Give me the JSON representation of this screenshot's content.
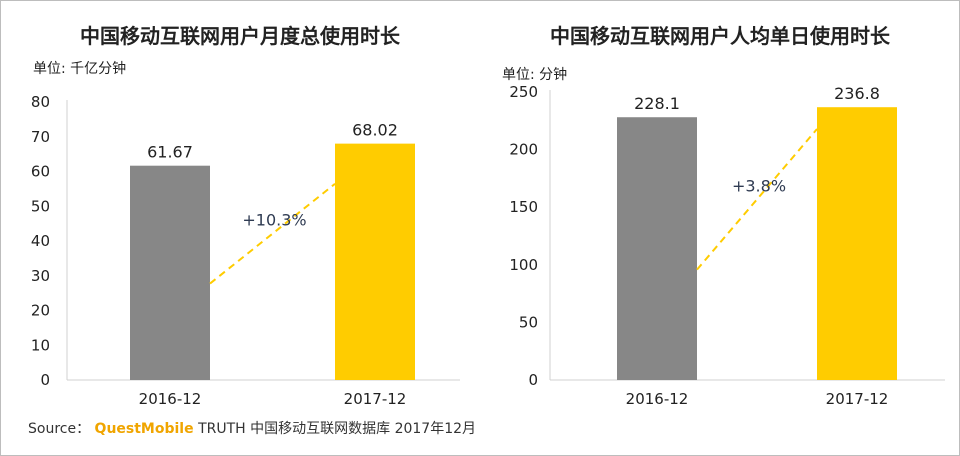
{
  "source": {
    "prefix": "Source：",
    "brand": "QuestMobile",
    "rest": "TRUTH 中国移动互联网数据库 2017年12月"
  },
  "chart_data": [
    {
      "type": "bar",
      "title": "中国移动互联网用户月度总使用时长",
      "unit_label": "单位: 千亿分钟",
      "categories": [
        "2016-12",
        "2017-12"
      ],
      "values": [
        61.67,
        68.02
      ],
      "value_labels": [
        "61.67",
        "68.02"
      ],
      "colors": [
        "#878787",
        "#ffcc00"
      ],
      "ylim": [
        0,
        80
      ],
      "yticks": [
        0,
        10,
        20,
        30,
        40,
        50,
        60,
        70,
        80
      ],
      "growth_label": "+10.3%",
      "growth_line_color": "#ffcc00",
      "grid": false
    },
    {
      "type": "bar",
      "title": "中国移动互联网用户人均单日使用时长",
      "unit_label": "单位: 分钟",
      "categories": [
        "2016-12",
        "2017-12"
      ],
      "values": [
        228.1,
        236.8
      ],
      "value_labels": [
        "228.1",
        "236.8"
      ],
      "colors": [
        "#878787",
        "#ffcc00"
      ],
      "ylim": [
        0,
        250
      ],
      "yticks": [
        0,
        50,
        100,
        150,
        200,
        250
      ],
      "growth_label": "+3.8%",
      "growth_line_color": "#ffcc00",
      "grid": false
    }
  ]
}
